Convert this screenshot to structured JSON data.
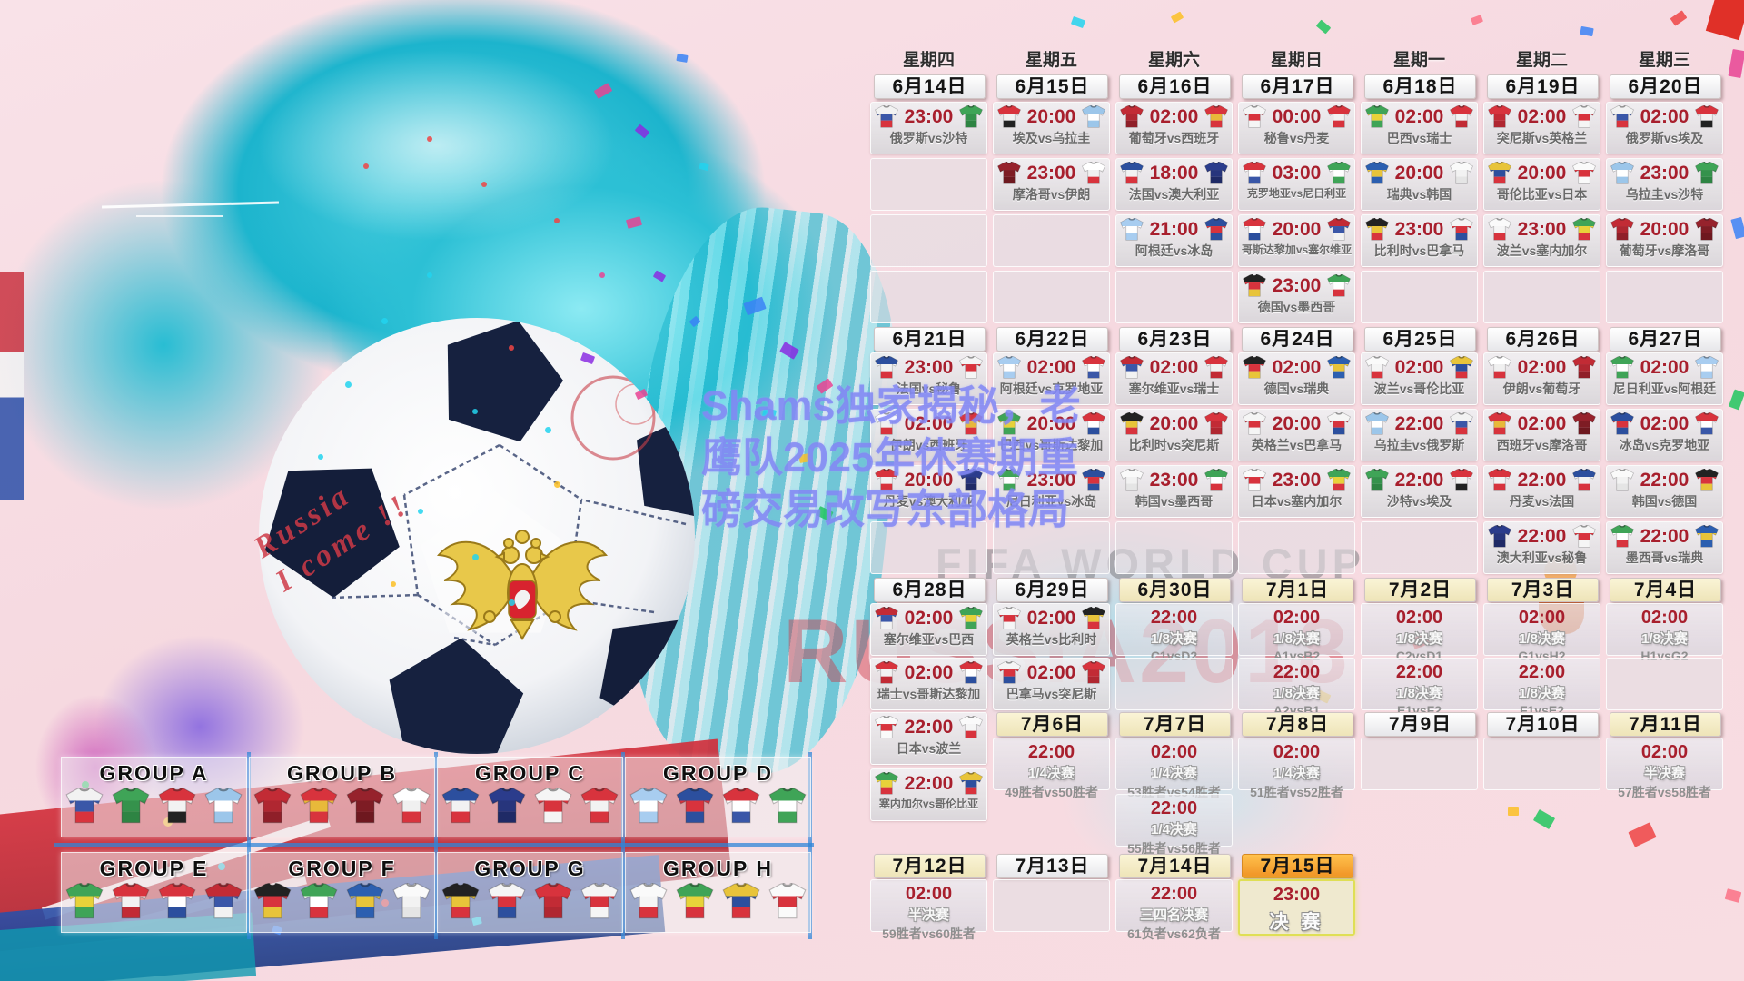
{
  "watermark": {
    "lines": [
      "Shams独家揭秘，老",
      "鹰队2025年休赛期重",
      "磅交易改写东部格局"
    ]
  },
  "background_text": {
    "fifa": "FIFA WORLD CUP",
    "russia": "RUSSIA2018",
    "ball_script_1": "Russia",
    "ball_script_2": "I come !!"
  },
  "palette": {
    "time_red": "#a81f2d",
    "header_orange": "#f09124",
    "header_cream": "#f5ecc4",
    "watermark_blue": "#8084f3",
    "teal": "#1cb4cd",
    "pink_bg": "#f6dbe1",
    "confetti": [
      "#e84393",
      "#8a2be2",
      "#3b82f6",
      "#fbbf24",
      "#22c55e",
      "#ef4444",
      "#fb7185",
      "#22d3ee"
    ]
  },
  "teams": {
    "俄罗斯": [
      "#f2f2f2",
      "#3a57a8",
      "#d8333d"
    ],
    "沙特": [
      "#3fa457",
      "#35924c",
      "#2e8443"
    ],
    "埃及": [
      "#d8333d",
      "#f2f2f2",
      "#222222"
    ],
    "乌拉圭": [
      "#9cc6ea",
      "#ffffff",
      "#9cc6ea"
    ],
    "葡萄牙": [
      "#c22b35",
      "#b02731",
      "#8f1f29"
    ],
    "西班牙": [
      "#d8333d",
      "#e8b93a",
      "#d8333d"
    ],
    "秘鲁": [
      "#f5f5f5",
      "#d8333d",
      "#f5f5f5"
    ],
    "丹麦": [
      "#d8333d",
      "#f2f2f2",
      "#d8333d"
    ],
    "巴西": [
      "#3fa457",
      "#e8d23a",
      "#3fa457"
    ],
    "瑞士": [
      "#d8333d",
      "#f2f2f2",
      "#c22b35"
    ],
    "突尼斯": [
      "#d8333d",
      "#c22b35",
      "#b02731"
    ],
    "英格兰": [
      "#f5f5f5",
      "#d8333d",
      "#f5f5f5"
    ],
    "摩洛哥": [
      "#96222c",
      "#7e1c24",
      "#6e181f"
    ],
    "伊朗": [
      "#ffffff",
      "#f0f0f0",
      "#d8333d"
    ],
    "法国": [
      "#2c4f9e",
      "#f2f2f2",
      "#d8333d"
    ],
    "澳大利亚": [
      "#2b3c8c",
      "#27357c",
      "#1f2a66"
    ],
    "克罗地亚": [
      "#d8333d",
      "#ffffff",
      "#3a57a8"
    ],
    "尼日利亚": [
      "#3fa457",
      "#ffffff",
      "#3fa457"
    ],
    "阿根廷": [
      "#a8cdf0",
      "#ffffff",
      "#a8cdf0"
    ],
    "冰岛": [
      "#2c4f9e",
      "#d8333d",
      "#2c4f9e"
    ],
    "哥斯达黎加": [
      "#d8333d",
      "#ffffff",
      "#2c4f9e"
    ],
    "塞尔维亚": [
      "#c22b35",
      "#3a57a8",
      "#f2f2f2"
    ],
    "德国": [
      "#222222",
      "#d8333d",
      "#e8c43a"
    ],
    "瑞典": [
      "#2c5fb0",
      "#e8c43a",
      "#2c5fb0"
    ],
    "韩国": [
      "#fafafa",
      "#f2f2f2",
      "#e5e5e5"
    ],
    "墨西哥": [
      "#3fa457",
      "#ffffff",
      "#d8333d"
    ],
    "比利时": [
      "#222222",
      "#e8c43a",
      "#d8333d"
    ],
    "巴拿马": [
      "#f5f5f5",
      "#d8333d",
      "#2c4f9e"
    ],
    "波兰": [
      "#fafafa",
      "#f5f5f5",
      "#d8333d"
    ],
    "塞内加尔": [
      "#3fa457",
      "#e8d23a",
      "#d8333d"
    ],
    "哥伦比亚": [
      "#e8c43a",
      "#2c4f9e",
      "#d8333d"
    ],
    "日本": [
      "#fafafa",
      "#d8333d",
      "#fafafa"
    ]
  },
  "calendar": {
    "weekdays": [
      "星期四",
      "星期五",
      "星期六",
      "星期日",
      "星期一",
      "星期二",
      "星期三"
    ],
    "rows": [
      {
        "key": "d1",
        "cells": [
          {
            "t": "d",
            "v": "6月14日",
            "s": "w"
          },
          {
            "t": "d",
            "v": "6月15日",
            "s": "w"
          },
          {
            "t": "d",
            "v": "6月16日",
            "s": "w"
          },
          {
            "t": "d",
            "v": "6月17日",
            "s": "w"
          },
          {
            "t": "d",
            "v": "6月18日",
            "s": "w"
          },
          {
            "t": "d",
            "v": "6月19日",
            "s": "w"
          },
          {
            "t": "d",
            "v": "6月20日",
            "s": "w"
          }
        ]
      },
      {
        "key": "m1a",
        "cells": [
          {
            "t": "m",
            "time": "23:00",
            "h": "俄罗斯",
            "a": "沙特"
          },
          {
            "t": "m",
            "time": "20:00",
            "h": "埃及",
            "a": "乌拉圭"
          },
          {
            "t": "m",
            "time": "02:00",
            "h": "葡萄牙",
            "a": "西班牙"
          },
          {
            "t": "m",
            "time": "00:00",
            "h": "秘鲁",
            "a": "丹麦"
          },
          {
            "t": "m",
            "time": "02:00",
            "h": "巴西",
            "a": "瑞士"
          },
          {
            "t": "m",
            "time": "02:00",
            "h": "突尼斯",
            "a": "英格兰"
          },
          {
            "t": "m",
            "time": "02:00",
            "h": "俄罗斯",
            "a": "埃及"
          }
        ]
      },
      {
        "key": "m1b",
        "cells": [
          {
            "t": "e"
          },
          {
            "t": "m",
            "time": "23:00",
            "h": "摩洛哥",
            "a": "伊朗"
          },
          {
            "t": "m",
            "time": "18:00",
            "h": "法国",
            "a": "澳大利亚"
          },
          {
            "t": "m",
            "time": "03:00",
            "h": "克罗地亚",
            "a": "尼日利亚"
          },
          {
            "t": "m",
            "time": "20:00",
            "h": "瑞典",
            "a": "韩国"
          },
          {
            "t": "m",
            "time": "20:00",
            "h": "哥伦比亚",
            "a": "日本"
          },
          {
            "t": "m",
            "time": "23:00",
            "h": "乌拉圭",
            "a": "沙特"
          }
        ]
      },
      {
        "key": "m1c",
        "cells": [
          {
            "t": "e"
          },
          {
            "t": "e"
          },
          {
            "t": "m",
            "time": "21:00",
            "h": "阿根廷",
            "a": "冰岛"
          },
          {
            "t": "m",
            "time": "20:00",
            "h": "哥斯达黎加",
            "a": "塞尔维亚"
          },
          {
            "t": "m",
            "time": "23:00",
            "h": "比利时",
            "a": "巴拿马"
          },
          {
            "t": "m",
            "time": "23:00",
            "h": "波兰",
            "a": "塞内加尔"
          },
          {
            "t": "m",
            "time": "20:00",
            "h": "葡萄牙",
            "a": "摩洛哥"
          }
        ]
      },
      {
        "key": "m1d",
        "cells": [
          {
            "t": "e"
          },
          {
            "t": "e"
          },
          {
            "t": "e"
          },
          {
            "t": "m",
            "time": "23:00",
            "h": "德国",
            "a": "墨西哥"
          },
          {
            "t": "e"
          },
          {
            "t": "e"
          },
          {
            "t": "e"
          }
        ]
      },
      {
        "key": "d2",
        "cells": [
          {
            "t": "d",
            "v": "6月21日",
            "s": "w"
          },
          {
            "t": "d",
            "v": "6月22日",
            "s": "w"
          },
          {
            "t": "d",
            "v": "6月23日",
            "s": "w"
          },
          {
            "t": "d",
            "v": "6月24日",
            "s": "w"
          },
          {
            "t": "d",
            "v": "6月25日",
            "s": "w"
          },
          {
            "t": "d",
            "v": "6月26日",
            "s": "w"
          },
          {
            "t": "d",
            "v": "6月27日",
            "s": "w"
          }
        ]
      },
      {
        "key": "m2a",
        "cells": [
          {
            "t": "m",
            "time": "23:00",
            "h": "法国",
            "a": "秘鲁"
          },
          {
            "t": "m",
            "time": "02:00",
            "h": "阿根廷",
            "a": "克罗地亚"
          },
          {
            "t": "m",
            "time": "02:00",
            "h": "塞尔维亚",
            "a": "瑞士"
          },
          {
            "t": "m",
            "time": "02:00",
            "h": "德国",
            "a": "瑞典"
          },
          {
            "t": "m",
            "time": "02:00",
            "h": "波兰",
            "a": "哥伦比亚"
          },
          {
            "t": "m",
            "time": "02:00",
            "h": "伊朗",
            "a": "葡萄牙"
          },
          {
            "t": "m",
            "time": "02:00",
            "h": "尼日利亚",
            "a": "阿根廷"
          }
        ]
      },
      {
        "key": "m2b",
        "cells": [
          {
            "t": "m",
            "time": "02:00",
            "h": "伊朗",
            "a": "西班牙"
          },
          {
            "t": "m",
            "time": "20:00",
            "h": "巴西",
            "a": "哥斯达黎加"
          },
          {
            "t": "m",
            "time": "20:00",
            "h": "比利时",
            "a": "突尼斯"
          },
          {
            "t": "m",
            "time": "20:00",
            "h": "英格兰",
            "a": "巴拿马"
          },
          {
            "t": "m",
            "time": "22:00",
            "h": "乌拉圭",
            "a": "俄罗斯"
          },
          {
            "t": "m",
            "time": "02:00",
            "h": "西班牙",
            "a": "摩洛哥"
          },
          {
            "t": "m",
            "time": "02:00",
            "h": "冰岛",
            "a": "克罗地亚"
          }
        ]
      },
      {
        "key": "m2c",
        "cells": [
          {
            "t": "m",
            "time": "20:00",
            "h": "丹麦",
            "a": "澳大利亚"
          },
          {
            "t": "m",
            "time": "23:00",
            "h": "尼日利亚",
            "a": "冰岛"
          },
          {
            "t": "m",
            "time": "23:00",
            "h": "韩国",
            "a": "墨西哥"
          },
          {
            "t": "m",
            "time": "23:00",
            "h": "日本",
            "a": "塞内加尔"
          },
          {
            "t": "m",
            "time": "22:00",
            "h": "沙特",
            "a": "埃及"
          },
          {
            "t": "m",
            "time": "22:00",
            "h": "丹麦",
            "a": "法国"
          },
          {
            "t": "m",
            "time": "22:00",
            "h": "韩国",
            "a": "德国"
          }
        ]
      },
      {
        "key": "m2d",
        "cells": [
          {
            "t": "e"
          },
          {
            "t": "e"
          },
          {
            "t": "e"
          },
          {
            "t": "e"
          },
          {
            "t": "e"
          },
          {
            "t": "m",
            "time": "22:00",
            "h": "澳大利亚",
            "a": "秘鲁"
          },
          {
            "t": "m",
            "time": "22:00",
            "h": "墨西哥",
            "a": "瑞典"
          }
        ]
      },
      {
        "key": "d3",
        "cells": [
          {
            "t": "d",
            "v": "6月28日",
            "s": "w"
          },
          {
            "t": "d",
            "v": "6月29日",
            "s": "w"
          },
          {
            "t": "d",
            "v": "6月30日",
            "s": "c"
          },
          {
            "t": "d",
            "v": "7月1日",
            "s": "c"
          },
          {
            "t": "d",
            "v": "7月2日",
            "s": "c"
          },
          {
            "t": "d",
            "v": "7月3日",
            "s": "c"
          },
          {
            "t": "d",
            "v": "7月4日",
            "s": "c"
          }
        ]
      },
      {
        "key": "m3a",
        "cells": [
          {
            "t": "m",
            "time": "02:00",
            "h": "塞尔维亚",
            "a": "巴西"
          },
          {
            "t": "m",
            "time": "02:00",
            "h": "英格兰",
            "a": "比利时"
          },
          {
            "t": "k",
            "time": "22:00",
            "st": "1/8决赛",
            "p": "C1vsD2"
          },
          {
            "t": "k",
            "time": "02:00",
            "st": "1/8决赛",
            "p": "A1vsB2"
          },
          {
            "t": "k",
            "time": "02:00",
            "st": "1/8决赛",
            "p": "C2vsD1"
          },
          {
            "t": "k",
            "time": "02:00",
            "st": "1/8决赛",
            "p": "G1vsH2"
          },
          {
            "t": "k",
            "time": "02:00",
            "st": "1/8决赛",
            "p": "H1vsG2"
          }
        ]
      },
      {
        "key": "m3b",
        "cells": [
          {
            "t": "m",
            "time": "02:00",
            "h": "瑞士",
            "a": "哥斯达黎加"
          },
          {
            "t": "m",
            "time": "02:00",
            "h": "巴拿马",
            "a": "突尼斯"
          },
          {
            "t": "e"
          },
          {
            "t": "k",
            "time": "22:00",
            "st": "1/8决赛",
            "p": "A2vsB1"
          },
          {
            "t": "k",
            "time": "22:00",
            "st": "1/8决赛",
            "p": "E1vsF2"
          },
          {
            "t": "k",
            "time": "22:00",
            "st": "1/8决赛",
            "p": "F1vsE2"
          },
          {
            "t": "e"
          }
        ]
      },
      {
        "key": "j1",
        "cells": [
          {
            "t": "m",
            "time": "22:00",
            "h": "日本",
            "a": "波兰"
          },
          null,
          null,
          null,
          null,
          null,
          null
        ]
      },
      {
        "key": "d4",
        "cells": [
          null,
          {
            "t": "d",
            "v": "7月6日",
            "s": "c"
          },
          {
            "t": "d",
            "v": "7月7日",
            "s": "c"
          },
          {
            "t": "d",
            "v": "7月8日",
            "s": "c"
          },
          {
            "t": "d",
            "v": "7月9日",
            "s": "w"
          },
          {
            "t": "d",
            "v": "7月10日",
            "s": "w"
          },
          {
            "t": "d",
            "v": "7月11日",
            "s": "c"
          }
        ]
      },
      {
        "key": "m4a",
        "cells": [
          null,
          {
            "t": "k",
            "time": "22:00",
            "st": "1/4决赛",
            "p": "49胜者vs50胜者"
          },
          {
            "t": "k",
            "time": "02:00",
            "st": "1/4决赛",
            "p": "53胜者vs54胜者"
          },
          {
            "t": "k",
            "time": "02:00",
            "st": "1/4决赛",
            "p": "51胜者vs52胜者"
          },
          {
            "t": "e"
          },
          {
            "t": "e"
          },
          {
            "t": "k",
            "time": "02:00",
            "st": "半决赛",
            "p": "57胜者vs58胜者"
          }
        ]
      },
      {
        "key": "j2",
        "cells": [
          {
            "t": "m",
            "time": "22:00",
            "h": "塞内加尔",
            "a": "哥伦比亚"
          },
          null,
          null,
          null,
          null,
          null,
          null
        ]
      },
      {
        "key": "m4b",
        "cells": [
          null,
          null,
          {
            "t": "k",
            "time": "22:00",
            "st": "1/4决赛",
            "p": "55胜者vs56胜者"
          },
          null,
          null,
          null,
          null
        ]
      },
      {
        "key": "d5",
        "cells": [
          {
            "t": "d",
            "v": "7月12日",
            "s": "c"
          },
          {
            "t": "d",
            "v": "7月13日",
            "s": "w"
          },
          {
            "t": "d",
            "v": "7月14日",
            "s": "c"
          },
          {
            "t": "d",
            "v": "7月15日",
            "s": "o"
          },
          null,
          null,
          null
        ]
      },
      {
        "key": "m5a",
        "cells": [
          {
            "t": "k",
            "time": "02:00",
            "st": "半决赛",
            "p": "59胜者vs60胜者"
          },
          {
            "t": "e"
          },
          {
            "t": "k",
            "time": "22:00",
            "st": "三四名决赛",
            "p": "61负者vs62负者"
          },
          {
            "t": "f",
            "time": "23:00",
            "st": "决 赛"
          },
          null,
          null,
          null
        ]
      }
    ]
  },
  "groups": [
    {
      "name": "GROUP A",
      "teams": [
        "俄罗斯",
        "沙特",
        "埃及",
        "乌拉圭"
      ]
    },
    {
      "name": "GROUP B",
      "teams": [
        "葡萄牙",
        "西班牙",
        "摩洛哥",
        "伊朗"
      ]
    },
    {
      "name": "GROUP C",
      "teams": [
        "法国",
        "澳大利亚",
        "秘鲁",
        "丹麦"
      ]
    },
    {
      "name": "GROUP D",
      "teams": [
        "阿根廷",
        "冰岛",
        "克罗地亚",
        "尼日利亚"
      ]
    },
    {
      "name": "GROUP E",
      "teams": [
        "巴西",
        "瑞士",
        "哥斯达黎加",
        "塞尔维亚"
      ]
    },
    {
      "name": "GROUP F",
      "teams": [
        "德国",
        "墨西哥",
        "瑞典",
        "韩国"
      ]
    },
    {
      "name": "GROUP G",
      "teams": [
        "比利时",
        "巴拿马",
        "突尼斯",
        "英格兰"
      ]
    },
    {
      "name": "GROUP H",
      "teams": [
        "波兰",
        "塞内加尔",
        "哥伦比亚",
        "日本"
      ]
    }
  ]
}
